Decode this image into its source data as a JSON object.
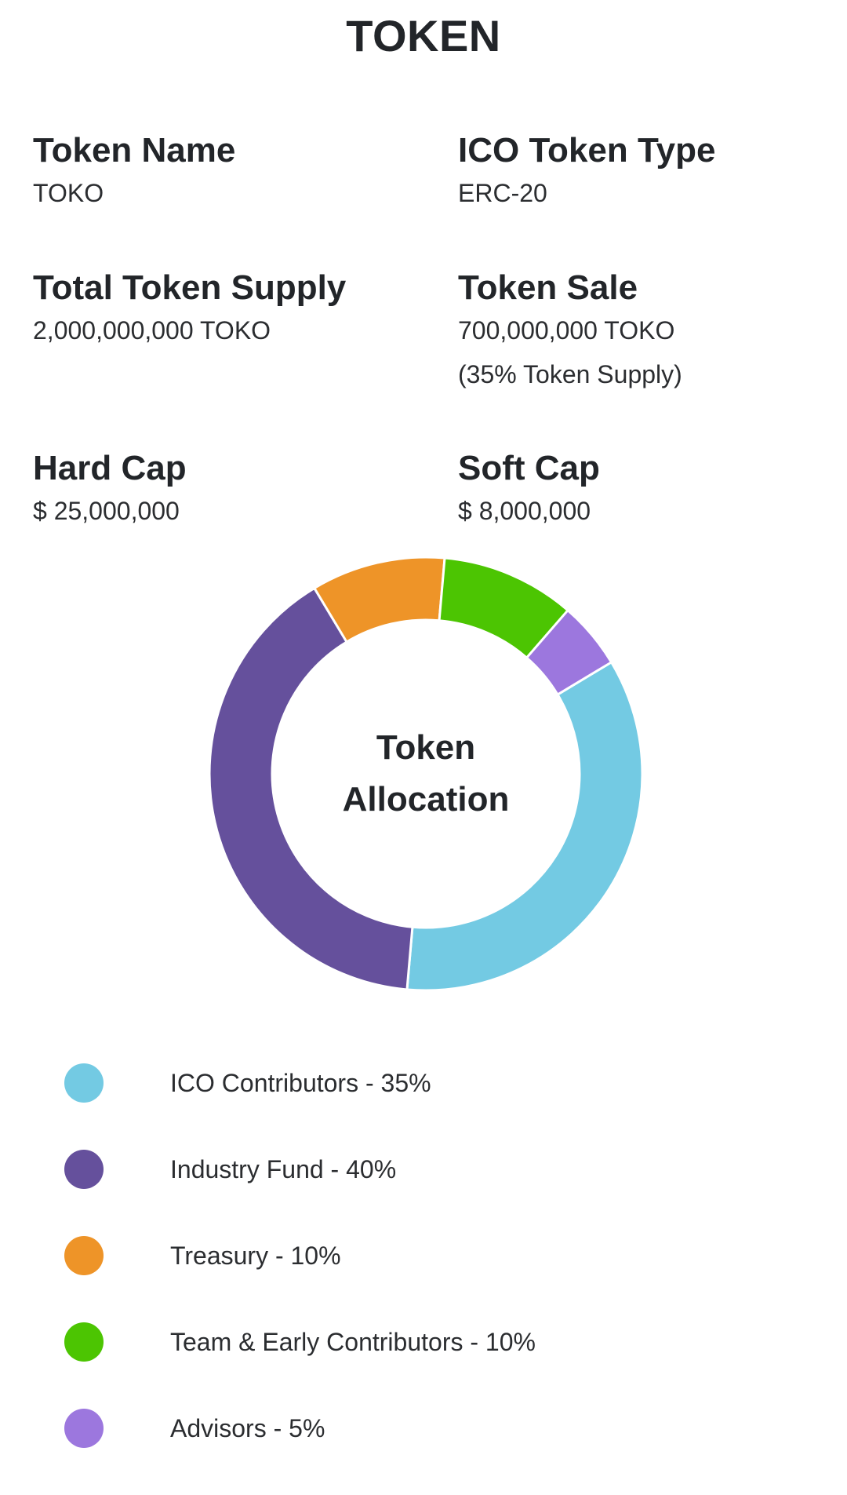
{
  "page": {
    "title": "TOKEN"
  },
  "token_info": {
    "token_name": {
      "label": "Token Name",
      "value": "TOKO"
    },
    "token_type": {
      "label": "ICO Token Type",
      "value": "ERC-20"
    },
    "total_supply": {
      "label": "Total Token Supply",
      "value": "2,000,000,000 TOKO"
    },
    "token_sale": {
      "label": "Token Sale",
      "value": "700,000,000 TOKO",
      "note": "(35% Token Supply)"
    },
    "hard_cap": {
      "label": "Hard Cap",
      "value": "$ 25,000,000"
    },
    "soft_cap": {
      "label": "Soft Cap",
      "value": "$ 8,000,000"
    }
  },
  "chart_data": {
    "type": "pie",
    "style": "donut",
    "title": "Token Allocation",
    "start_category": "ICO Contributors",
    "direction": "clockwise",
    "slice_border_color": "#ffffff",
    "categories": [
      "ICO Contributors",
      "Industry Fund",
      "Treasury",
      "Team & Early Contributors",
      "Advisors"
    ],
    "values": [
      35,
      40,
      10,
      10,
      5
    ],
    "colors": [
      "#73cae3",
      "#65509c",
      "#ee9428",
      "#4cc502",
      "#9c77de"
    ]
  },
  "legend": {
    "items": [
      {
        "label": "ICO Contributors - 35%",
        "color": "#73cae3"
      },
      {
        "label": "Industry Fund - 40%",
        "color": "#65509c"
      },
      {
        "label": "Treasury - 10%",
        "color": "#ee9428"
      },
      {
        "label": "Team & Early Contributors - 10%",
        "color": "#4cc502"
      },
      {
        "label": "Advisors - 5%",
        "color": "#9c77de"
      }
    ]
  }
}
